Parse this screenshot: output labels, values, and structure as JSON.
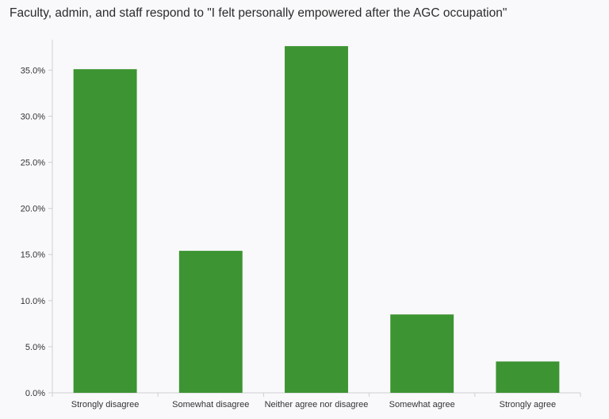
{
  "chart_data": {
    "type": "bar",
    "title": "Faculty, admin, and staff respond to \"I felt personally empowered after the AGC occupation\"",
    "xlabel": "",
    "ylabel": "",
    "categories": [
      "Strongly disagree",
      "Somewhat disagree",
      "Neither agree nor disagree",
      "Somewhat agree",
      "Strongly agree"
    ],
    "values": [
      35.1,
      15.4,
      37.6,
      8.5,
      3.4
    ],
    "ylim": [
      0,
      38.3
    ],
    "yticks": [
      0,
      5,
      10,
      15,
      20,
      25,
      30,
      35
    ],
    "ytick_labels": [
      "0.0%",
      "5.0%",
      "10.0%",
      "15.0%",
      "20.0%",
      "25.0%",
      "30.0%",
      "35.0%"
    ],
    "grid": false,
    "legend": "none",
    "colors": {
      "bar": "#3d9432",
      "axis": "#cfcfd6",
      "background": "#f9f8fb"
    }
  }
}
